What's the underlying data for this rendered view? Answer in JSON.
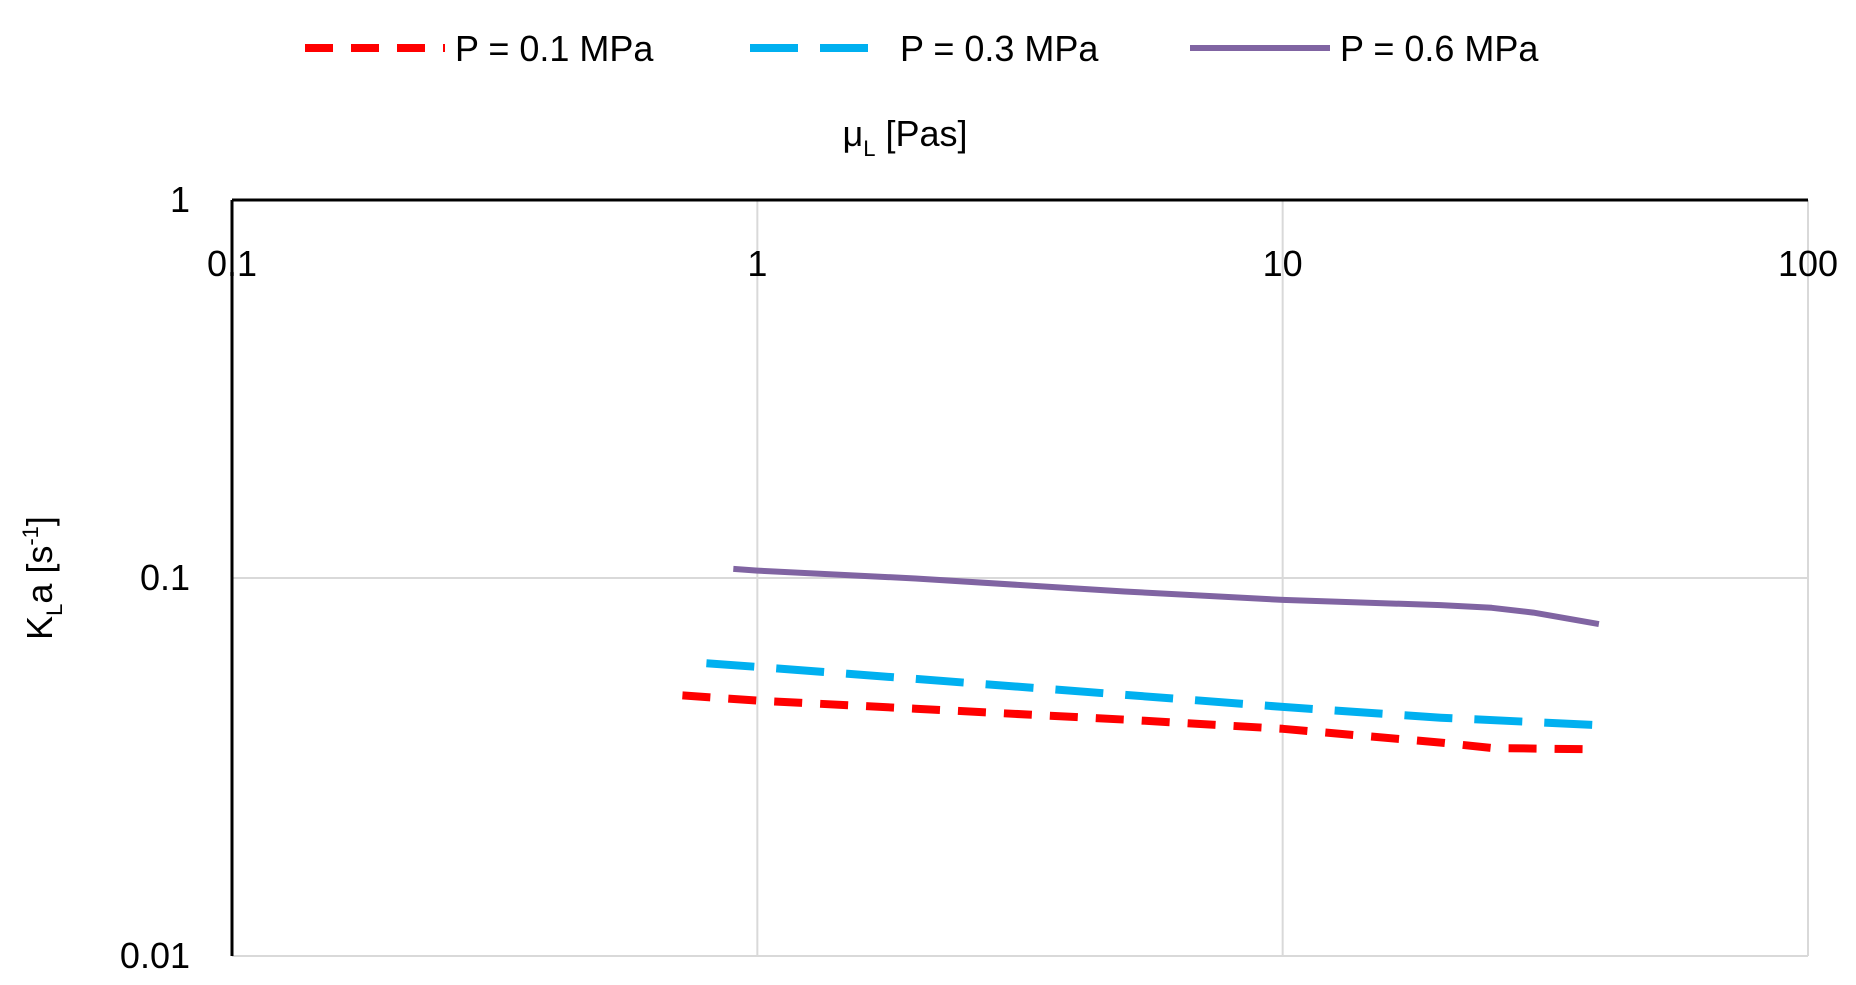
{
  "chart_data": {
    "type": "line",
    "xlabel": {
      "main": "μ",
      "sub": "L",
      "rest": " [Pas]"
    },
    "ylabel": {
      "main": "K",
      "sub": "L",
      "rest1": "a [s",
      "sup": "-1",
      "rest2": "]"
    },
    "x_scale": "log",
    "y_scale": "log",
    "xlim": [
      0.1,
      100
    ],
    "ylim": [
      0.01,
      1
    ],
    "x_ticks": [
      {
        "value": 0.1,
        "label": "0.1"
      },
      {
        "value": 1,
        "label": "1"
      },
      {
        "value": 10,
        "label": "10"
      },
      {
        "value": 100,
        "label": "100"
      }
    ],
    "y_ticks": [
      {
        "value": 1,
        "label": "1"
      },
      {
        "value": 0.1,
        "label": "0.1"
      },
      {
        "value": 0.01,
        "label": "0.01"
      }
    ],
    "x_axis_position": "top",
    "legend_position": "top",
    "grid": true,
    "series": [
      {
        "name": "P = 0.1 MPa",
        "color": "#ff0000",
        "style": "dash",
        "x": [
          0.72,
          1,
          2,
          5,
          10,
          20,
          25,
          40
        ],
        "y": [
          0.0489,
          0.0474,
          0.0451,
          0.0422,
          0.0399,
          0.0367,
          0.0355,
          0.0352
        ]
      },
      {
        "name": "P = 0.3 MPa",
        "color": "#00b0f0",
        "style": "long-dash",
        "x": [
          0.8,
          1,
          2,
          5,
          10,
          20,
          40
        ],
        "y": [
          0.0595,
          0.0582,
          0.0541,
          0.0491,
          0.0456,
          0.0427,
          0.0408
        ]
      },
      {
        "name": "P = 0.6 MPa",
        "color": "#8064a2",
        "style": "solid",
        "x": [
          0.9,
          1,
          2,
          5,
          10,
          20,
          25,
          30,
          40
        ],
        "y": [
          0.1057,
          0.1046,
          0.0997,
          0.0921,
          0.0875,
          0.0848,
          0.0834,
          0.081,
          0.0755
        ]
      }
    ]
  }
}
